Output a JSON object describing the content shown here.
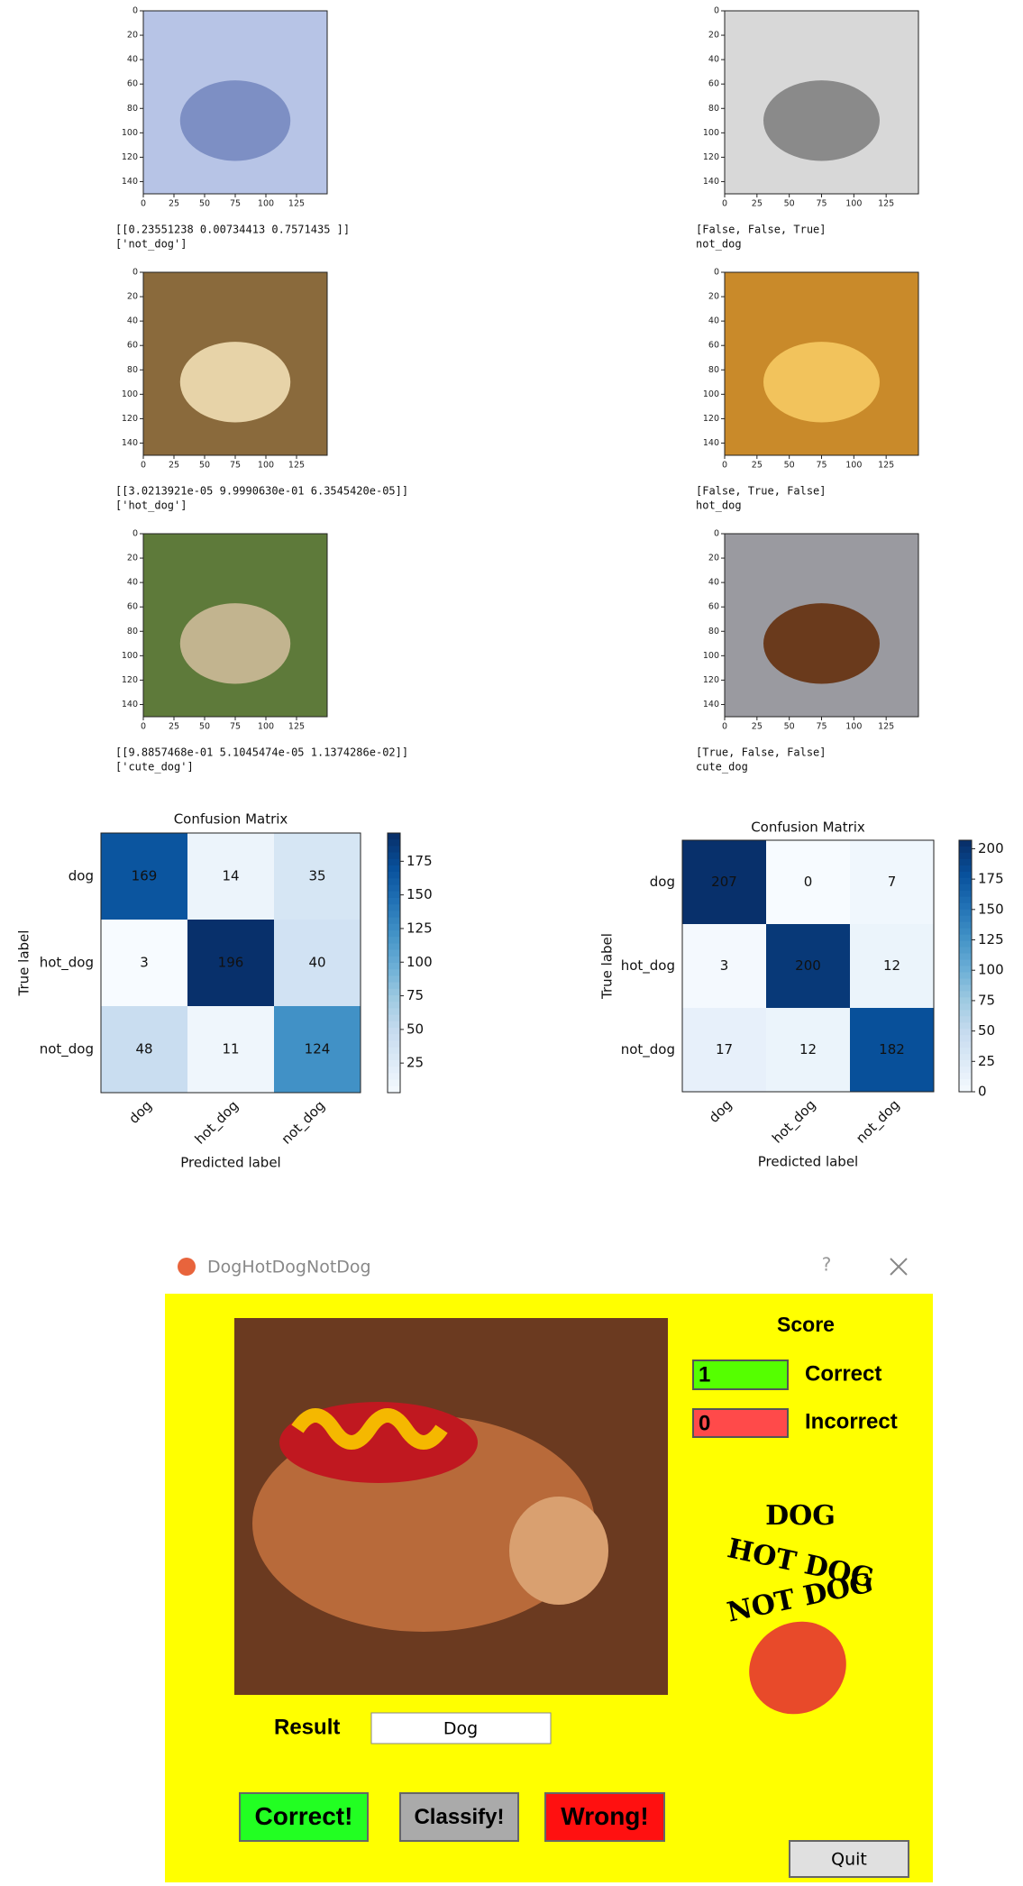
{
  "image_axes": {
    "xlim": [
      0,
      150
    ],
    "ylim": [
      0,
      150
    ],
    "xticks": [
      0,
      25,
      50,
      75,
      100,
      125
    ],
    "yticks": [
      0,
      20,
      40,
      60,
      80,
      100,
      120,
      140
    ]
  },
  "panels": [
    {
      "output": [
        "[[0.23551238 0.00734413 0.7571435 ]]",
        "['not_dog']"
      ]
    },
    {
      "output": [
        "[False, False, True]",
        "not_dog"
      ]
    },
    {
      "output": [
        "[[3.0213921e-05 9.9990630e-01 6.3545420e-05]]",
        "['hot_dog']"
      ]
    },
    {
      "output": [
        "[False, True, False]",
        "hot_dog"
      ]
    },
    {
      "output": [
        "[[9.8857468e-01 5.1045474e-05 1.1374286e-02]]",
        "['cute_dog']"
      ]
    },
    {
      "output": [
        "[True, False, False]",
        "cute_dog"
      ]
    }
  ],
  "confusion_matrices": [
    {
      "title": "Confusion Matrix",
      "xlabel": "Predicted label",
      "ylabel": "True label",
      "labels": [
        "dog",
        "hot_dog",
        "not_dog"
      ],
      "matrix": [
        [
          169,
          14,
          35
        ],
        [
          3,
          196,
          40
        ],
        [
          48,
          11,
          124
        ]
      ],
      "colorbar_ticks": [
        25,
        50,
        75,
        100,
        125,
        150,
        175
      ]
    },
    {
      "title": "Confusion Matrix",
      "xlabel": "Predicted label",
      "ylabel": "True label",
      "labels": [
        "dog",
        "hot_dog",
        "not_dog"
      ],
      "matrix": [
        [
          207,
          0,
          7
        ],
        [
          3,
          200,
          12
        ],
        [
          17,
          12,
          182
        ]
      ],
      "colorbar_ticks": [
        0,
        25,
        50,
        75,
        100,
        125,
        150,
        175,
        200
      ]
    }
  ],
  "app": {
    "title": "DogHotDogNotDog",
    "help": "?",
    "score_title": "Score",
    "correct_count": "1",
    "correct_label": "Correct",
    "incorrect_count": "0",
    "incorrect_label": "Incorrect",
    "logo": [
      "DOG",
      "HOT DOG",
      "NOT DOG"
    ],
    "result_label": "Result",
    "result_value": "Dog",
    "buttons": {
      "correct": "Correct!",
      "classify": "Classify!",
      "wrong": "Wrong!",
      "quit": "Quit"
    }
  }
}
